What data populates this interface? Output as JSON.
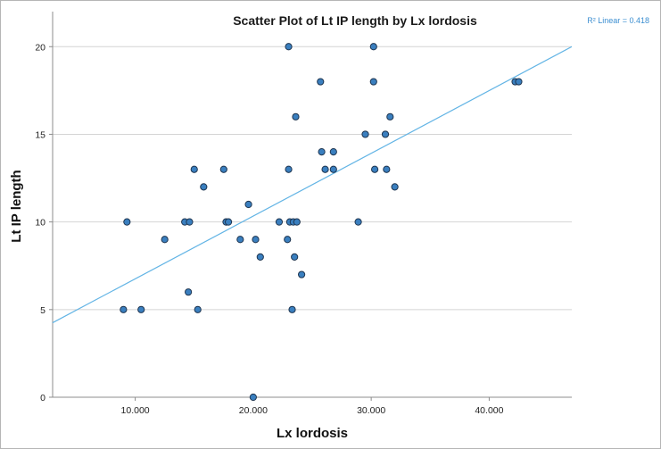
{
  "chart_data": {
    "type": "scatter",
    "title": "Scatter Plot of Lt IP length by Lx lordosis",
    "xlabel": "Lx lordosis",
    "ylabel": "Lt IP length",
    "xlim": [
      3.0,
      47.0
    ],
    "ylim": [
      0,
      22
    ],
    "x_ticks": [
      10,
      20,
      30,
      40
    ],
    "x_tick_labels": [
      "10.000",
      "20.000",
      "30.000",
      "40.000"
    ],
    "y_ticks": [
      0,
      5,
      10,
      15,
      20
    ],
    "y_tick_labels": [
      "0",
      "5",
      "10",
      "15",
      "20"
    ],
    "grid": "horizontal",
    "point_color": "#3a7fbf",
    "point_edge_color": "#1e3550",
    "fit_line": {
      "label": "R² Linear = 0.418",
      "color": "#62b4e5",
      "x": [
        3.0,
        47.0
      ],
      "y": [
        4.25,
        20.0
      ]
    },
    "points": [
      {
        "x": 9.0,
        "y": 5
      },
      {
        "x": 9.3,
        "y": 10
      },
      {
        "x": 10.5,
        "y": 5
      },
      {
        "x": 12.5,
        "y": 9
      },
      {
        "x": 14.2,
        "y": 10
      },
      {
        "x": 14.5,
        "y": 6
      },
      {
        "x": 14.6,
        "y": 10
      },
      {
        "x": 15.0,
        "y": 13
      },
      {
        "x": 15.3,
        "y": 5
      },
      {
        "x": 15.8,
        "y": 12
      },
      {
        "x": 17.5,
        "y": 13
      },
      {
        "x": 17.7,
        "y": 10
      },
      {
        "x": 17.9,
        "y": 10
      },
      {
        "x": 18.9,
        "y": 9
      },
      {
        "x": 19.6,
        "y": 11
      },
      {
        "x": 20.0,
        "y": 0
      },
      {
        "x": 20.2,
        "y": 9
      },
      {
        "x": 20.6,
        "y": 8
      },
      {
        "x": 22.2,
        "y": 10
      },
      {
        "x": 22.9,
        "y": 9
      },
      {
        "x": 23.0,
        "y": 20
      },
      {
        "x": 23.0,
        "y": 13
      },
      {
        "x": 23.1,
        "y": 10
      },
      {
        "x": 23.3,
        "y": 5
      },
      {
        "x": 23.4,
        "y": 10
      },
      {
        "x": 23.5,
        "y": 8
      },
      {
        "x": 23.6,
        "y": 16
      },
      {
        "x": 23.7,
        "y": 10
      },
      {
        "x": 24.1,
        "y": 7
      },
      {
        "x": 25.7,
        "y": 18
      },
      {
        "x": 25.8,
        "y": 14
      },
      {
        "x": 26.1,
        "y": 13
      },
      {
        "x": 26.8,
        "y": 14
      },
      {
        "x": 26.8,
        "y": 13
      },
      {
        "x": 28.9,
        "y": 10
      },
      {
        "x": 29.5,
        "y": 15
      },
      {
        "x": 30.2,
        "y": 20
      },
      {
        "x": 30.2,
        "y": 18
      },
      {
        "x": 30.3,
        "y": 13
      },
      {
        "x": 31.2,
        "y": 15
      },
      {
        "x": 31.3,
        "y": 13
      },
      {
        "x": 31.6,
        "y": 16
      },
      {
        "x": 32.0,
        "y": 12
      },
      {
        "x": 42.2,
        "y": 18
      },
      {
        "x": 42.5,
        "y": 18
      }
    ]
  }
}
